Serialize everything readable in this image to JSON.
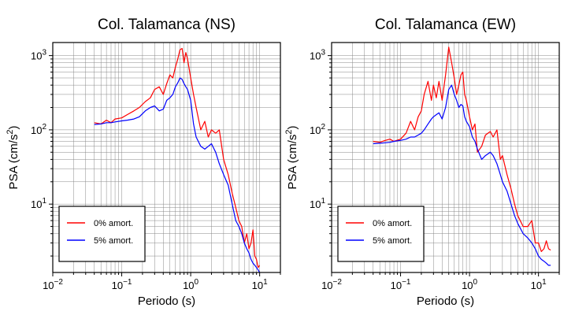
{
  "chart_data": [
    {
      "type": "line",
      "title": "Col. Talamanca (NS)",
      "xlabel": "Periodo (s)",
      "ylabel": "PSA (cm/s2)",
      "xscale": "log",
      "yscale": "log",
      "xlim": [
        0.01,
        20
      ],
      "ylim": [
        1.2,
        1500
      ],
      "grid": true,
      "legend_position": "bottom-left",
      "x_ticks": [
        {
          "base": "10",
          "exp": "−2"
        },
        {
          "base": "10",
          "exp": "−1"
        },
        {
          "base": "10",
          "exp": "0"
        },
        {
          "base": "10",
          "exp": "1"
        }
      ],
      "y_ticks": [
        {
          "base": "10",
          "exp": "1"
        },
        {
          "base": "10",
          "exp": "2"
        },
        {
          "base": "10",
          "exp": "3"
        }
      ],
      "series": [
        {
          "name": "0% amort.",
          "color": "#ff0000",
          "x": [
            0.04,
            0.05,
            0.06,
            0.07,
            0.08,
            0.1,
            0.12,
            0.15,
            0.18,
            0.22,
            0.26,
            0.3,
            0.35,
            0.4,
            0.45,
            0.5,
            0.55,
            0.6,
            0.65,
            0.7,
            0.75,
            0.8,
            0.85,
            0.9,
            1.0,
            1.1,
            1.2,
            1.4,
            1.6,
            1.8,
            2.0,
            2.3,
            2.6,
            3.0,
            3.5,
            4.0,
            4.5,
            5.0,
            5.5,
            6.0,
            6.5,
            7.0,
            7.5,
            8.0,
            8.5,
            9.0,
            9.5,
            10.0
          ],
          "y": [
            125,
            120,
            135,
            125,
            140,
            145,
            160,
            180,
            200,
            240,
            270,
            350,
            380,
            300,
            420,
            550,
            500,
            700,
            900,
            1200,
            1250,
            800,
            1100,
            900,
            500,
            300,
            200,
            100,
            130,
            80,
            100,
            90,
            100,
            40,
            25,
            14,
            9,
            6,
            5,
            3,
            4,
            2.5,
            3,
            4.5,
            2,
            1.8,
            1.4,
            1.5
          ]
        },
        {
          "name": "5% amort.",
          "color": "#0000ff",
          "x": [
            0.04,
            0.05,
            0.06,
            0.07,
            0.08,
            0.1,
            0.12,
            0.15,
            0.18,
            0.22,
            0.26,
            0.3,
            0.35,
            0.4,
            0.45,
            0.5,
            0.55,
            0.6,
            0.65,
            0.7,
            0.75,
            0.8,
            0.85,
            0.9,
            1.0,
            1.1,
            1.2,
            1.4,
            1.6,
            1.8,
            2.0,
            2.3,
            2.6,
            3.0,
            3.5,
            4.0,
            4.5,
            5.0,
            5.5,
            6.0,
            6.5,
            7.0,
            7.5,
            8.0,
            8.5,
            9.0,
            9.5,
            10.0
          ],
          "y": [
            118,
            120,
            125,
            125,
            128,
            132,
            135,
            140,
            150,
            180,
            200,
            210,
            180,
            190,
            250,
            270,
            300,
            380,
            430,
            500,
            480,
            420,
            380,
            350,
            250,
            120,
            80,
            60,
            55,
            60,
            65,
            50,
            35,
            25,
            18,
            10,
            6,
            5,
            4,
            3,
            2.5,
            2.2,
            1.8,
            1.6,
            1.5,
            1.4,
            1.3,
            1.2
          ]
        }
      ]
    },
    {
      "type": "line",
      "title": "Col. Talamanca (EW)",
      "xlabel": "Periodo (s)",
      "ylabel": "PSA (cm/s2)",
      "xscale": "log",
      "yscale": "log",
      "xlim": [
        0.01,
        20
      ],
      "ylim": [
        1.2,
        1500
      ],
      "grid": true,
      "legend_position": "bottom-left",
      "x_ticks": [
        {
          "base": "10",
          "exp": "−2"
        },
        {
          "base": "10",
          "exp": "−1"
        },
        {
          "base": "10",
          "exp": "0"
        },
        {
          "base": "10",
          "exp": "1"
        }
      ],
      "y_ticks": [
        {
          "base": "10",
          "exp": "1"
        },
        {
          "base": "10",
          "exp": "2"
        },
        {
          "base": "10",
          "exp": "3"
        }
      ],
      "series": [
        {
          "name": "0% amort.",
          "color": "#ff0000",
          "x": [
            0.04,
            0.05,
            0.06,
            0.07,
            0.08,
            0.1,
            0.12,
            0.14,
            0.16,
            0.18,
            0.2,
            0.22,
            0.25,
            0.28,
            0.3,
            0.33,
            0.36,
            0.4,
            0.45,
            0.5,
            0.55,
            0.6,
            0.65,
            0.7,
            0.75,
            0.8,
            0.85,
            0.9,
            1.0,
            1.1,
            1.2,
            1.3,
            1.5,
            1.7,
            2.0,
            2.2,
            2.5,
            2.8,
            3.0,
            3.5,
            4.0,
            4.5,
            5.0,
            6.0,
            7.0,
            8.0,
            9.0,
            10.0,
            11.0,
            12.0,
            13.0,
            14.0,
            15.0
          ],
          "y": [
            70,
            68,
            72,
            75,
            70,
            75,
            90,
            130,
            100,
            150,
            180,
            300,
            450,
            250,
            400,
            270,
            450,
            250,
            550,
            1300,
            800,
            500,
            300,
            400,
            550,
            600,
            300,
            250,
            150,
            100,
            120,
            50,
            60,
            85,
            95,
            80,
            100,
            40,
            45,
            25,
            16,
            10,
            7,
            5,
            5,
            6,
            3,
            3,
            2.3,
            2.5,
            3.2,
            2.5,
            2.4
          ]
        },
        {
          "name": "5% amort.",
          "color": "#0000ff",
          "x": [
            0.04,
            0.05,
            0.06,
            0.07,
            0.08,
            0.1,
            0.12,
            0.14,
            0.16,
            0.18,
            0.2,
            0.22,
            0.25,
            0.28,
            0.3,
            0.33,
            0.36,
            0.4,
            0.45,
            0.5,
            0.55,
            0.6,
            0.65,
            0.7,
            0.75,
            0.8,
            0.85,
            0.9,
            1.0,
            1.1,
            1.2,
            1.3,
            1.5,
            1.7,
            2.0,
            2.2,
            2.5,
            2.8,
            3.0,
            3.5,
            4.0,
            4.5,
            5.0,
            6.0,
            7.0,
            8.0,
            9.0,
            10.0,
            11.0,
            12.0,
            13.0,
            14.0,
            15.0
          ],
          "y": [
            65,
            66,
            67,
            68,
            70,
            72,
            75,
            80,
            80,
            85,
            90,
            100,
            120,
            140,
            150,
            160,
            170,
            140,
            200,
            350,
            400,
            300,
            250,
            200,
            220,
            210,
            150,
            130,
            110,
            80,
            70,
            55,
            40,
            45,
            50,
            45,
            35,
            25,
            20,
            15,
            10,
            7,
            5.5,
            4,
            3.5,
            3,
            2.5,
            2,
            1.8,
            1.7,
            1.6,
            1.5,
            1.5
          ]
        }
      ]
    }
  ]
}
